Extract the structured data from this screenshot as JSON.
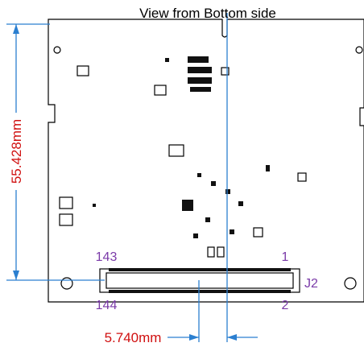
{
  "title": "View from Bottom side",
  "dimensions": {
    "vertical": "55.428mm",
    "horizontal": "5.740mm"
  },
  "connector": {
    "label": "J2",
    "pin_top_left": "143",
    "pin_top_right": "1",
    "pin_bottom_left": "144",
    "pin_bottom_right": "2"
  }
}
